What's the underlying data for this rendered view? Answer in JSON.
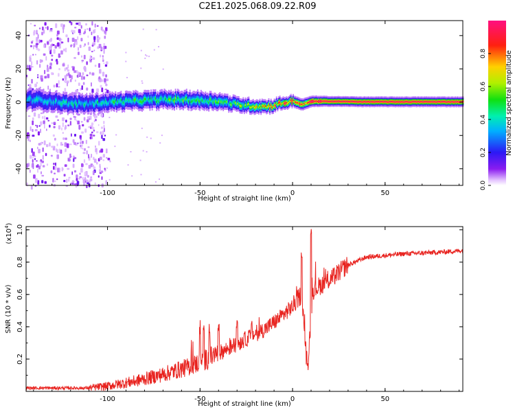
{
  "title": "C2E1.2025.068.09.22.R09",
  "colors": {
    "line": "#e8231f",
    "frame": "#000000",
    "background": "#ffffff"
  },
  "chart_data": [
    {
      "type": "heatmap",
      "name": "spectrogram",
      "xlabel": "Height of straight line (km)",
      "ylabel": "Frequency (Hz)",
      "xlim": [
        -144,
        92
      ],
      "ylim": [
        -50,
        49
      ],
      "xticks": [
        -100,
        -50,
        0,
        50
      ],
      "xtick_labels": [
        "-100",
        "-50",
        "0",
        "50"
      ],
      "yticks": [
        -40,
        -20,
        0,
        20,
        40
      ],
      "ytick_labels": [
        "-40",
        "-20",
        "0",
        "20",
        "40"
      ],
      "colorbar": {
        "label": "Normalized spectral amplitude",
        "range": [
          0.0,
          1.0
        ],
        "ticks": [
          0.0,
          0.2,
          0.4,
          0.6,
          0.8
        ],
        "tick_labels": [
          "0.0",
          "0.2",
          "0.4",
          "0.6",
          "0.8"
        ]
      },
      "band_centers": [
        {
          "x": -139,
          "f": 1.5
        },
        {
          "x": -130,
          "f": 0.5
        },
        {
          "x": -120,
          "f": -1
        },
        {
          "x": -110,
          "f": -1
        },
        {
          "x": -100,
          "f": 0
        },
        {
          "x": -90,
          "f": 0.5
        },
        {
          "x": -80,
          "f": 1
        },
        {
          "x": -70,
          "f": 1.5
        },
        {
          "x": -60,
          "f": 1.5
        },
        {
          "x": -50,
          "f": 1
        },
        {
          "x": -40,
          "f": 0.5
        },
        {
          "x": -30,
          "f": -1.5
        },
        {
          "x": -20,
          "f": -2.5
        },
        {
          "x": -12,
          "f": -2.5
        },
        {
          "x": -8,
          "f": -1
        },
        {
          "x": 0,
          "f": 0.5
        },
        {
          "x": 5,
          "f": -1.5
        },
        {
          "x": 10,
          "f": 0.5
        },
        {
          "x": 20,
          "f": 0.5
        },
        {
          "x": 40,
          "f": 0.2
        },
        {
          "x": 92,
          "f": 0.2
        }
      ],
      "band_halfwidth_hz": [
        {
          "x": -139,
          "w": 4
        },
        {
          "x": -100,
          "w": 3.5
        },
        {
          "x": -50,
          "w": 3.5
        },
        {
          "x": -35,
          "w": 3
        },
        {
          "x": -10,
          "w": 2.5
        },
        {
          "x": 20,
          "w": 2
        },
        {
          "x": 92,
          "w": 2
        }
      ],
      "peak_amplitude": [
        {
          "x": -139,
          "a": 0.35
        },
        {
          "x": -110,
          "a": 0.4
        },
        {
          "x": -90,
          "a": 0.45
        },
        {
          "x": -60,
          "a": 0.5
        },
        {
          "x": -35,
          "a": 0.5
        },
        {
          "x": -15,
          "a": 0.7
        },
        {
          "x": 0,
          "a": 0.85
        },
        {
          "x": 20,
          "a": 0.95
        },
        {
          "x": 92,
          "a": 0.95
        }
      ],
      "noise_region": {
        "x_from": -144,
        "x_to": -100
      }
    },
    {
      "type": "line",
      "name": "snr",
      "xlabel": "Height of straight line (km)",
      "ylabel": "SNR (10 * v/v)",
      "scale_label": "(x10",
      "scale_exponent": "4",
      "xlim": [
        -144,
        92
      ],
      "ylim": [
        0,
        1.02
      ],
      "xticks": [
        -100,
        -50,
        0,
        50
      ],
      "xtick_labels": [
        "-100",
        "-50",
        "0",
        "50"
      ],
      "yticks": [
        0.2,
        0.4,
        0.6,
        0.8,
        1.0
      ],
      "ytick_labels": [
        "0.2",
        "0.4",
        "0.6",
        "0.8",
        "1.0"
      ],
      "trend": [
        {
          "x": -144,
          "y": 0.02
        },
        {
          "x": -110,
          "y": 0.02
        },
        {
          "x": -100,
          "y": 0.03
        },
        {
          "x": -85,
          "y": 0.06
        },
        {
          "x": -70,
          "y": 0.1
        },
        {
          "x": -55,
          "y": 0.15
        },
        {
          "x": -45,
          "y": 0.2
        },
        {
          "x": -35,
          "y": 0.26
        },
        {
          "x": -25,
          "y": 0.32
        },
        {
          "x": -15,
          "y": 0.38
        },
        {
          "x": -8,
          "y": 0.44
        },
        {
          "x": 0,
          "y": 0.52
        },
        {
          "x": 5,
          "y": 0.6
        },
        {
          "x": 8,
          "y": 0.12
        },
        {
          "x": 11,
          "y": 0.62
        },
        {
          "x": 15,
          "y": 0.65
        },
        {
          "x": 22,
          "y": 0.7
        },
        {
          "x": 30,
          "y": 0.78
        },
        {
          "x": 40,
          "y": 0.83
        },
        {
          "x": 60,
          "y": 0.85
        },
        {
          "x": 80,
          "y": 0.86
        },
        {
          "x": 92,
          "y": 0.87
        }
      ],
      "spikes": [
        {
          "x": -50,
          "y": 0.4
        },
        {
          "x": -48,
          "y": 0.42
        },
        {
          "x": -45,
          "y": 0.38
        },
        {
          "x": -40,
          "y": 0.42
        },
        {
          "x": -30,
          "y": 0.44
        },
        {
          "x": -22,
          "y": 0.44
        },
        {
          "x": 5,
          "y": 0.86
        },
        {
          "x": 10,
          "y": 1.02
        }
      ]
    }
  ]
}
